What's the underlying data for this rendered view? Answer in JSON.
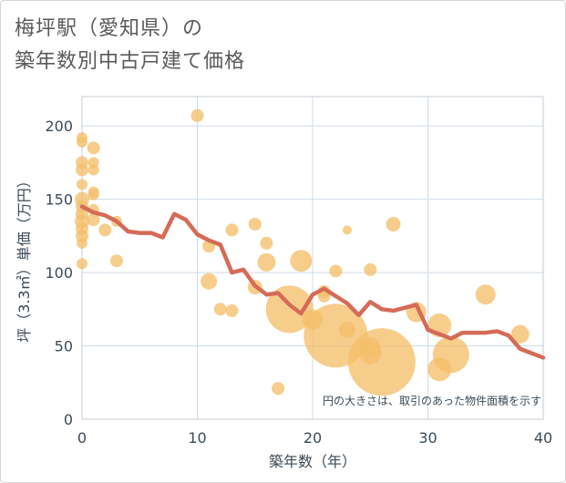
{
  "title": {
    "line1": "梅坪駅（愛知県）の",
    "line2": "築年数別中古戸建て価格"
  },
  "chart_data": {
    "type": "scatter",
    "xlabel": "築年数（年）",
    "ylabel": "坪（3.3㎡）単価（万円）",
    "xlim": [
      0,
      40
    ],
    "ylim": [
      0,
      220
    ],
    "x_ticks": [
      "0",
      "10",
      "20",
      "30",
      "40"
    ],
    "y_ticks": [
      "0",
      "50",
      "100",
      "150",
      "200"
    ],
    "x_tick_values": [
      0,
      10,
      20,
      30,
      40
    ],
    "y_tick_values": [
      0,
      50,
      100,
      150,
      200
    ],
    "grid": true,
    "annotation": "円の大きさは、取引のあった物件面積を示す",
    "colors": {
      "bubble": "#f3bf6a",
      "line": "#d56b57",
      "grid": "#d0dbe6",
      "plot_border": "#c4ccd4"
    },
    "bubbles": [
      {
        "x": 0,
        "y": 192,
        "s": 6
      },
      {
        "x": 0,
        "y": 189,
        "s": 6
      },
      {
        "x": 0,
        "y": 175,
        "s": 7
      },
      {
        "x": 0,
        "y": 170,
        "s": 7
      },
      {
        "x": 0,
        "y": 160,
        "s": 6
      },
      {
        "x": 0,
        "y": 150,
        "s": 8
      },
      {
        "x": 0,
        "y": 145,
        "s": 7
      },
      {
        "x": 0,
        "y": 140,
        "s": 7
      },
      {
        "x": 0,
        "y": 135,
        "s": 8
      },
      {
        "x": 0,
        "y": 130,
        "s": 7
      },
      {
        "x": 0,
        "y": 125,
        "s": 7
      },
      {
        "x": 0,
        "y": 120,
        "s": 6
      },
      {
        "x": 0,
        "y": 106,
        "s": 6
      },
      {
        "x": 1,
        "y": 185,
        "s": 7
      },
      {
        "x": 1,
        "y": 175,
        "s": 6
      },
      {
        "x": 1,
        "y": 170,
        "s": 6
      },
      {
        "x": 1,
        "y": 155,
        "s": 6
      },
      {
        "x": 1,
        "y": 153,
        "s": 6
      },
      {
        "x": 1,
        "y": 143,
        "s": 6
      },
      {
        "x": 1,
        "y": 136,
        "s": 7
      },
      {
        "x": 2,
        "y": 129,
        "s": 7
      },
      {
        "x": 3,
        "y": 135,
        "s": 6
      },
      {
        "x": 3,
        "y": 108,
        "s": 7
      },
      {
        "x": 10,
        "y": 207,
        "s": 7
      },
      {
        "x": 11,
        "y": 118,
        "s": 7
      },
      {
        "x": 11,
        "y": 94,
        "s": 9
      },
      {
        "x": 12,
        "y": 75,
        "s": 7
      },
      {
        "x": 13,
        "y": 129,
        "s": 7
      },
      {
        "x": 13,
        "y": 74,
        "s": 7
      },
      {
        "x": 15,
        "y": 133,
        "s": 7
      },
      {
        "x": 15,
        "y": 90,
        "s": 8
      },
      {
        "x": 16,
        "y": 120,
        "s": 7
      },
      {
        "x": 16,
        "y": 107,
        "s": 10
      },
      {
        "x": 17,
        "y": 21,
        "s": 7
      },
      {
        "x": 18,
        "y": 75,
        "s": 26
      },
      {
        "x": 19,
        "y": 108,
        "s": 12
      },
      {
        "x": 20,
        "y": 68,
        "s": 11
      },
      {
        "x": 21,
        "y": 84,
        "s": 7
      },
      {
        "x": 21,
        "y": 87,
        "s": 7
      },
      {
        "x": 22,
        "y": 101,
        "s": 7
      },
      {
        "x": 22,
        "y": 57,
        "s": 35
      },
      {
        "x": 23,
        "y": 129,
        "s": 5
      },
      {
        "x": 23,
        "y": 61,
        "s": 9
      },
      {
        "x": 25,
        "y": 102,
        "s": 7
      },
      {
        "x": 25,
        "y": 49,
        "s": 11
      },
      {
        "x": 25,
        "y": 45,
        "s": 12
      },
      {
        "x": 26,
        "y": 39,
        "s": 37
      },
      {
        "x": 27,
        "y": 133,
        "s": 8
      },
      {
        "x": 29,
        "y": 73,
        "s": 11
      },
      {
        "x": 31,
        "y": 64,
        "s": 13
      },
      {
        "x": 31,
        "y": 34,
        "s": 13
      },
      {
        "x": 32,
        "y": 44,
        "s": 20
      },
      {
        "x": 35,
        "y": 85,
        "s": 11
      },
      {
        "x": 38,
        "y": 58,
        "s": 10
      }
    ],
    "series": [
      {
        "x": [
          0,
          1,
          2,
          3,
          4,
          5,
          6,
          7,
          8,
          9,
          10,
          11,
          12,
          13,
          14,
          15,
          16,
          17,
          18,
          19,
          20,
          21,
          22,
          23,
          24,
          25,
          26,
          27,
          28,
          29,
          30,
          31,
          32,
          33,
          34,
          35,
          36,
          37,
          38,
          39,
          40
        ],
        "values": [
          145,
          141,
          139,
          135,
          128,
          127,
          127,
          124,
          140,
          136,
          126,
          122,
          119,
          100,
          102,
          91,
          85,
          86,
          78,
          72,
          85,
          89,
          84,
          79,
          71,
          80,
          75,
          74,
          76,
          78,
          61,
          58,
          55,
          59,
          59,
          59,
          60,
          57,
          48,
          45,
          42
        ]
      }
    ]
  }
}
